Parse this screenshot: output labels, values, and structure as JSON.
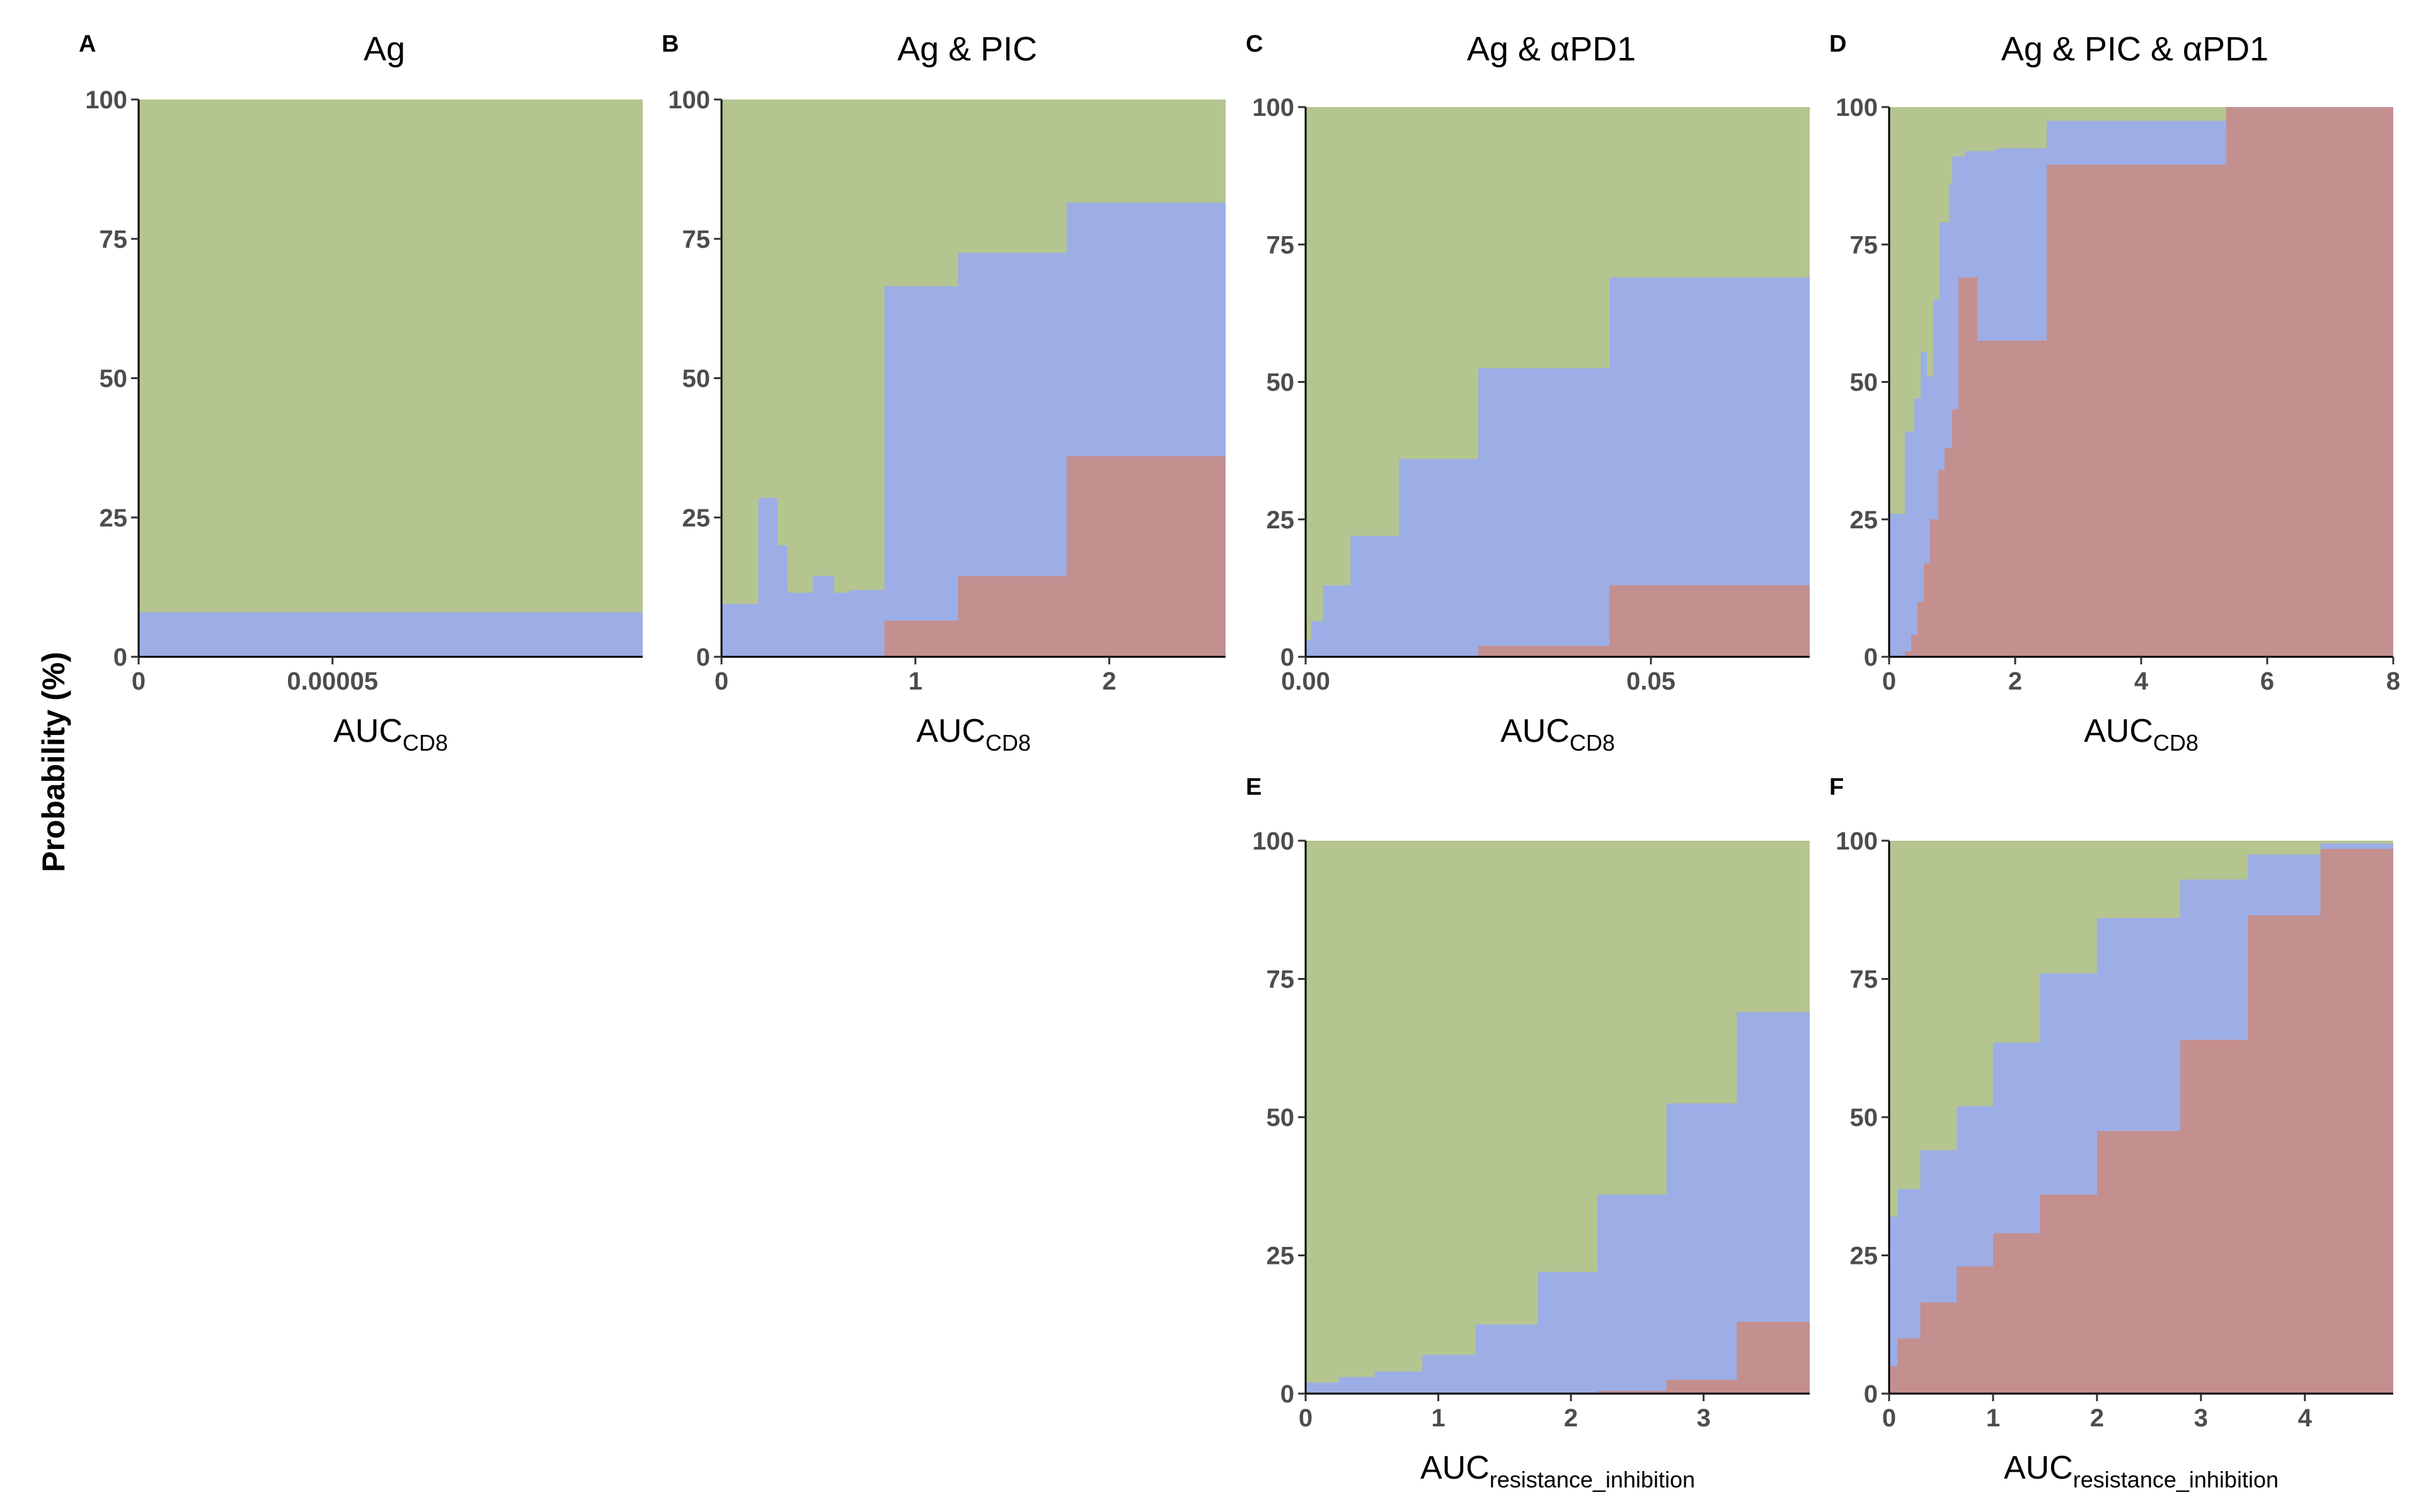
{
  "figure": {
    "ylabel": "Probability (%)",
    "colors": {
      "green": "#b5c590",
      "blue": "#9daee6",
      "red": "#c48f8f"
    }
  },
  "chart_data": [
    {
      "id": "A",
      "letter": "A",
      "title": "Ag",
      "type": "area",
      "xlabel_main": "AUC",
      "xlabel_sub": "CD8",
      "xlim": [
        0,
        0.00013
      ],
      "ylim": [
        0,
        100
      ],
      "xticks": [
        0,
        5e-05
      ],
      "xtick_labels": [
        "0",
        "0.00005"
      ],
      "yticks": [
        0,
        25,
        50,
        75,
        100
      ],
      "ytick_labels": [
        "0",
        "25",
        "50",
        "75",
        "100"
      ],
      "series": [
        {
          "name": "red",
          "color_key": "red",
          "steps": [
            [
              0,
              0
            ]
          ]
        },
        {
          "name": "blue",
          "color_key": "blue",
          "steps": [
            [
              0,
              8
            ]
          ]
        }
      ]
    },
    {
      "id": "B",
      "letter": "B",
      "title": "Ag & PIC",
      "type": "area",
      "xlabel_main": "AUC",
      "xlabel_sub": "CD8",
      "xlim": [
        0,
        2.6
      ],
      "ylim": [
        0,
        100
      ],
      "xticks": [
        0,
        1,
        2
      ],
      "xtick_labels": [
        "0",
        "1",
        "2"
      ],
      "yticks": [
        0,
        25,
        50,
        75,
        100
      ],
      "ytick_labels": [
        "0",
        "25",
        "50",
        "75",
        "100"
      ],
      "series": [
        {
          "name": "red",
          "color_key": "red",
          "steps": [
            [
              0,
              0
            ],
            [
              0.84,
              6.5
            ],
            [
              1.22,
              14.5
            ],
            [
              1.78,
              36
            ]
          ]
        },
        {
          "name": "blue",
          "color_key": "blue",
          "steps": [
            [
              0,
              9.5
            ],
            [
              0.19,
              28.5
            ],
            [
              0.29,
              20
            ],
            [
              0.34,
              11.5
            ],
            [
              0.47,
              14.5
            ],
            [
              0.58,
              11.5
            ],
            [
              0.66,
              12
            ],
            [
              0.84,
              66.5
            ],
            [
              1.22,
              72.5
            ],
            [
              1.78,
              81.5
            ]
          ]
        }
      ]
    },
    {
      "id": "C",
      "letter": "C",
      "title": "Ag & αPD1",
      "type": "area",
      "xlabel_main": "AUC",
      "xlabel_sub": "CD8",
      "xlim": [
        0,
        0.073
      ],
      "ylim": [
        0,
        100
      ],
      "xticks": [
        0,
        0.05
      ],
      "xtick_labels": [
        "0.00",
        "0.05"
      ],
      "yticks": [
        0,
        25,
        50,
        75,
        100
      ],
      "ytick_labels": [
        "0",
        "25",
        "50",
        "75",
        "100"
      ],
      "series": [
        {
          "name": "red",
          "color_key": "red",
          "steps": [
            [
              0,
              0
            ],
            [
              0.025,
              2
            ],
            [
              0.044,
              13
            ]
          ]
        },
        {
          "name": "blue",
          "color_key": "blue",
          "steps": [
            [
              0,
              3
            ],
            [
              0.0008,
              6.5
            ],
            [
              0.0025,
              13
            ],
            [
              0.0065,
              22
            ],
            [
              0.0135,
              36
            ],
            [
              0.025,
              52.5
            ],
            [
              0.044,
              69
            ]
          ]
        }
      ]
    },
    {
      "id": "D",
      "letter": "D",
      "title": "Ag & PIC & αPD1",
      "type": "area",
      "xlabel_main": "AUC",
      "xlabel_sub": "CD8",
      "xlim": [
        0,
        8
      ],
      "ylim": [
        0,
        100
      ],
      "xticks": [
        0,
        2,
        4,
        6,
        8
      ],
      "xtick_labels": [
        "0",
        "2",
        "4",
        "6",
        "8"
      ],
      "yticks": [
        0,
        25,
        50,
        75,
        100
      ],
      "ytick_labels": [
        "0",
        "25",
        "50",
        "75",
        "100"
      ],
      "series": [
        {
          "name": "red",
          "color_key": "red",
          "steps": [
            [
              0,
              0
            ],
            [
              0.25,
              1
            ],
            [
              0.35,
              4
            ],
            [
              0.45,
              10
            ],
            [
              0.55,
              17
            ],
            [
              0.65,
              25
            ],
            [
              0.78,
              34
            ],
            [
              0.88,
              38
            ],
            [
              1.0,
              45
            ],
            [
              1.1,
              69
            ],
            [
              1.4,
              57.5
            ],
            [
              2.5,
              89.5
            ],
            [
              5.35,
              100
            ]
          ]
        },
        {
          "name": "blue",
          "color_key": "blue",
          "steps": [
            [
              0,
              26
            ],
            [
              0.25,
              41
            ],
            [
              0.4,
              47
            ],
            [
              0.5,
              55.5
            ],
            [
              0.6,
              51
            ],
            [
              0.7,
              65
            ],
            [
              0.8,
              79
            ],
            [
              0.95,
              86
            ],
            [
              1.0,
              91
            ],
            [
              1.2,
              92
            ],
            [
              1.7,
              92.5
            ],
            [
              2.5,
              97.5
            ],
            [
              5.35,
              100
            ]
          ]
        }
      ]
    },
    {
      "id": "E",
      "letter": "E",
      "title": "",
      "type": "area",
      "xlabel_main": "AUC",
      "xlabel_sub": "resistance_inhibition",
      "xlim": [
        0,
        3.8
      ],
      "ylim": [
        0,
        100
      ],
      "xticks": [
        0,
        1,
        2,
        3
      ],
      "xtick_labels": [
        "0",
        "1",
        "2",
        "3"
      ],
      "yticks": [
        0,
        25,
        50,
        75,
        100
      ],
      "ytick_labels": [
        "0",
        "25",
        "50",
        "75",
        "100"
      ],
      "series": [
        {
          "name": "red",
          "color_key": "red",
          "steps": [
            [
              0,
              0
            ],
            [
              2.2,
              0.5
            ],
            [
              2.72,
              2.5
            ],
            [
              3.25,
              13
            ]
          ]
        },
        {
          "name": "blue",
          "color_key": "blue",
          "steps": [
            [
              0,
              2
            ],
            [
              0.25,
              3
            ],
            [
              0.52,
              4
            ],
            [
              0.88,
              7
            ],
            [
              1.28,
              12.5
            ],
            [
              1.75,
              22
            ],
            [
              2.2,
              36
            ],
            [
              2.72,
              52.5
            ],
            [
              3.25,
              69
            ]
          ]
        }
      ]
    },
    {
      "id": "F",
      "letter": "F",
      "title": "",
      "type": "area",
      "xlabel_main": "AUC",
      "xlabel_sub": "resistance_inhibition",
      "xlim": [
        0,
        4.85
      ],
      "ylim": [
        0,
        100
      ],
      "xticks": [
        0,
        1,
        2,
        3,
        4
      ],
      "xtick_labels": [
        "0",
        "1",
        "2",
        "3",
        "4"
      ],
      "yticks": [
        0,
        25,
        50,
        75,
        100
      ],
      "ytick_labels": [
        "0",
        "25",
        "50",
        "75",
        "100"
      ],
      "series": [
        {
          "name": "red",
          "color_key": "red",
          "steps": [
            [
              0,
              5
            ],
            [
              0.08,
              10
            ],
            [
              0.3,
              16.5
            ],
            [
              0.65,
              23
            ],
            [
              1.0,
              29
            ],
            [
              1.45,
              36
            ],
            [
              2.0,
              47.5
            ],
            [
              2.8,
              64
            ],
            [
              3.45,
              86.5
            ],
            [
              4.15,
              98.5
            ]
          ]
        },
        {
          "name": "blue",
          "color_key": "blue",
          "steps": [
            [
              0,
              32
            ],
            [
              0.08,
              37
            ],
            [
              0.3,
              44
            ],
            [
              0.65,
              52
            ],
            [
              1.0,
              63.5
            ],
            [
              1.45,
              76
            ],
            [
              2.0,
              86
            ],
            [
              2.8,
              93
            ],
            [
              3.45,
              97.5
            ],
            [
              4.15,
              99.5
            ]
          ]
        }
      ]
    }
  ]
}
